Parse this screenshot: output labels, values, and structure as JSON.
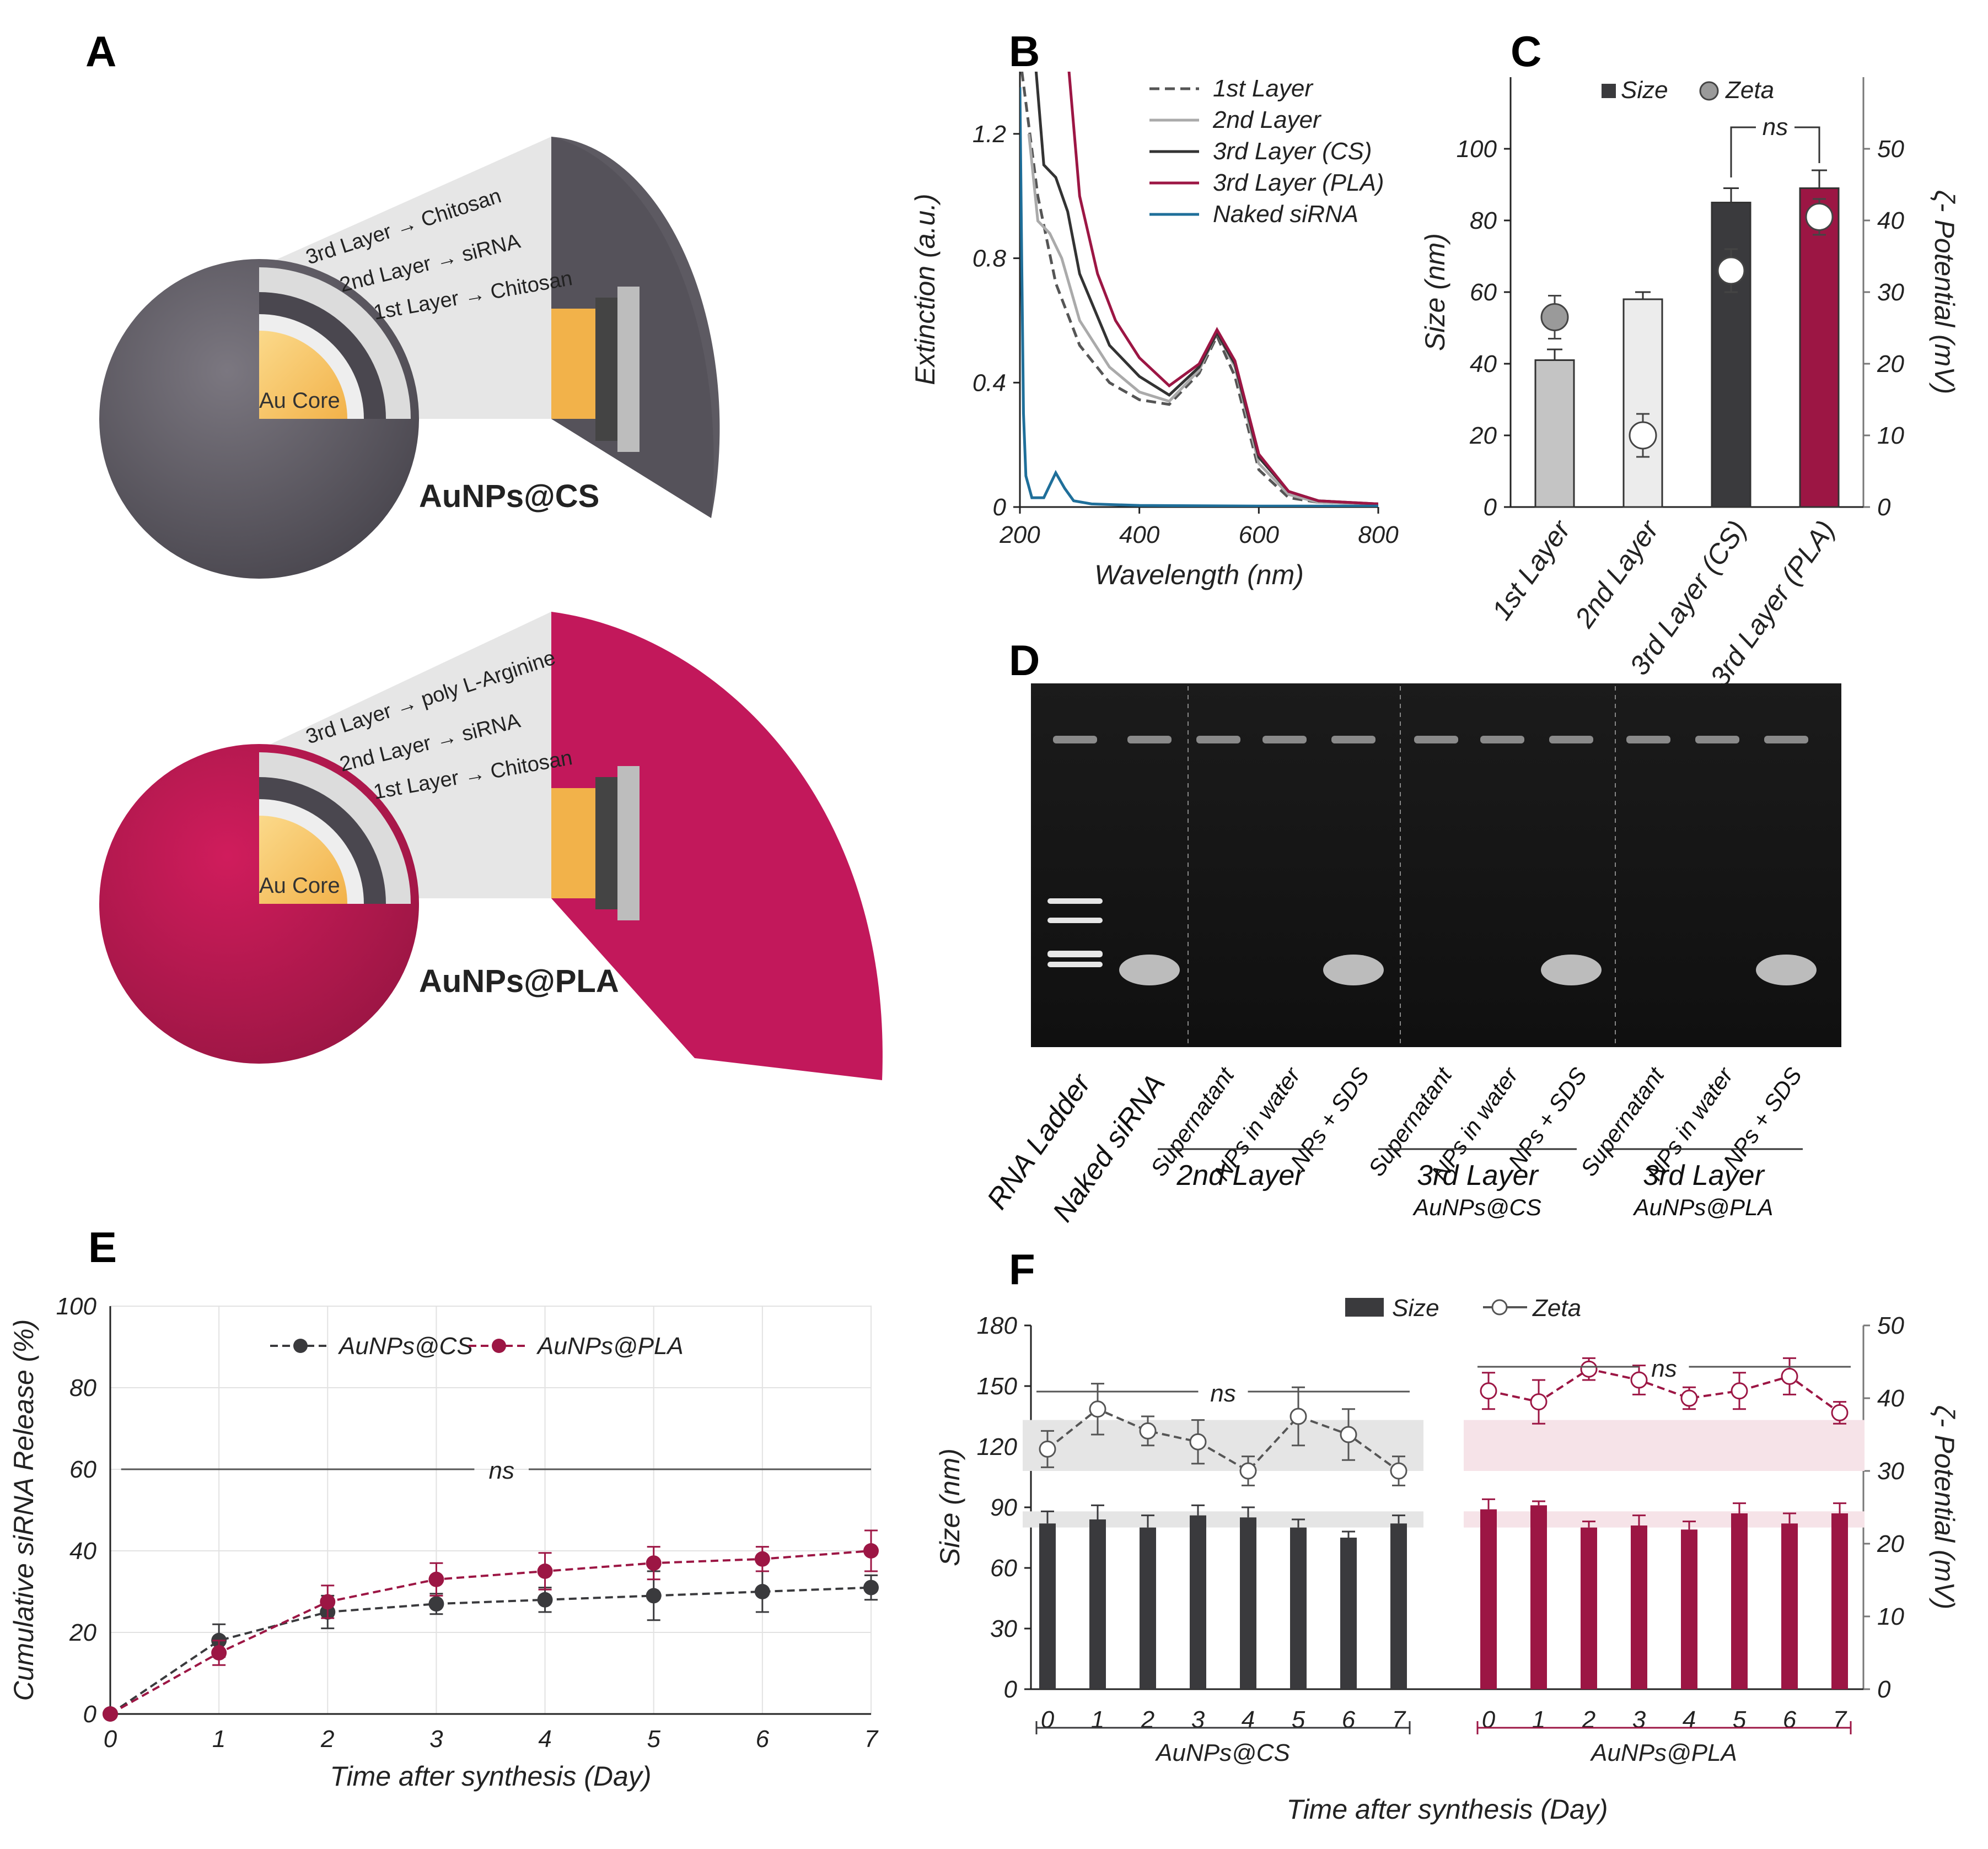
{
  "colors": {
    "cs_dark": "#3a3a3d",
    "pla": "#9c1644",
    "siRNA_line": "#1f6f9a",
    "light_gray": "#c9c9c9",
    "lighter_gray": "#ececec",
    "au_core": "#f7c86a",
    "sphere_cs": "#5d5a62",
    "sphere_pla": "#b8164f"
  },
  "panelA": {
    "label": "A",
    "cs": {
      "layers": [
        "3rd Layer → Chitosan",
        "2nd Layer → siRNA",
        "1st Layer → Chitosan"
      ],
      "core": "Au Core",
      "name": "AuNPs@CS"
    },
    "pla": {
      "layers": [
        "3rd Layer → poly L-Arginine",
        "2nd Layer → siRNA",
        "1st Layer → Chitosan"
      ],
      "core": "Au Core",
      "name": "AuNPs@PLA"
    }
  },
  "panelD": {
    "label": "D",
    "lanes": [
      "RNA Ladder",
      "Naked siRNA",
      "Supernatant",
      "NPs in water",
      "NPs + SDS",
      "Supernatant",
      "NPs in water",
      "NPs + SDS",
      "Supernatant",
      "NPs in water",
      "NPs + SDS"
    ],
    "groups": [
      {
        "name": "2nd Layer",
        "sub": ""
      },
      {
        "name": "3rd Layer",
        "sub": "AuNPs@CS"
      },
      {
        "name": "3rd Layer",
        "sub": "AuNPs@PLA"
      }
    ],
    "bands": {
      "ladder_lanes": [
        0
      ],
      "sirna_band_lanes": [
        1,
        4,
        7,
        10
      ]
    }
  },
  "chart_data": [
    {
      "panel": "B",
      "type": "line",
      "xlabel": "Wavelength (nm)",
      "ylabel": "Extinction (a.u.)",
      "xlim": [
        200,
        800
      ],
      "ylim": [
        0,
        1.4
      ],
      "xticks": [
        200,
        400,
        600,
        800
      ],
      "yticks": [
        0,
        0.4,
        0.8,
        1.2
      ],
      "series": [
        {
          "name": "1st Layer",
          "style": "dashed",
          "color": "#555555",
          "x": [
            200,
            230,
            260,
            300,
            350,
            400,
            450,
            500,
            530,
            560,
            600,
            650,
            700,
            800
          ],
          "y": [
            1.45,
            1.0,
            0.72,
            0.52,
            0.4,
            0.345,
            0.33,
            0.43,
            0.55,
            0.42,
            0.12,
            0.03,
            0.015,
            0.01
          ]
        },
        {
          "name": "2nd Layer",
          "style": "solid",
          "color": "#aaaaaa",
          "x": [
            215,
            230,
            250,
            270,
            300,
            350,
            400,
            450,
            500,
            530,
            560,
            600,
            650,
            700,
            800
          ],
          "y": [
            1.2,
            0.92,
            0.88,
            0.8,
            0.6,
            0.45,
            0.37,
            0.34,
            0.44,
            0.56,
            0.45,
            0.14,
            0.04,
            0.015,
            0.01
          ]
        },
        {
          "name": "3rd Layer (CS)",
          "style": "solid",
          "color": "#333333",
          "x": [
            225,
            240,
            260,
            280,
            300,
            350,
            400,
            450,
            500,
            530,
            560,
            600,
            650,
            700,
            800
          ],
          "y": [
            1.45,
            1.1,
            1.06,
            0.95,
            0.75,
            0.52,
            0.42,
            0.36,
            0.45,
            0.56,
            0.46,
            0.16,
            0.05,
            0.02,
            0.01
          ]
        },
        {
          "name": "3rd Layer (PLA)",
          "style": "solid",
          "color": "#9c1644",
          "x": [
            280,
            300,
            330,
            360,
            400,
            450,
            500,
            530,
            560,
            600,
            650,
            700,
            800
          ],
          "y": [
            1.45,
            1.0,
            0.75,
            0.6,
            0.48,
            0.39,
            0.46,
            0.57,
            0.47,
            0.17,
            0.05,
            0.02,
            0.01
          ]
        },
        {
          "name": "Naked siRNA",
          "style": "solid",
          "color": "#1f6f9a",
          "x": [
            200,
            203,
            206,
            210,
            220,
            240,
            260,
            275,
            290,
            320,
            400,
            600,
            800
          ],
          "y": [
            1.35,
            0.8,
            0.3,
            0.1,
            0.03,
            0.03,
            0.11,
            0.06,
            0.02,
            0.01,
            0.005,
            0.003,
            0.003
          ]
        }
      ]
    },
    {
      "panel": "C",
      "type": "bar",
      "categories": [
        "1st Layer",
        "2nd Layer",
        "3rd Layer (CS)",
        "3rd Layer (PLA)"
      ],
      "ylabel": "Size (nm)",
      "y2label": "ζ- Potential (mV)",
      "ylim": [
        0,
        120
      ],
      "yticks": [
        0,
        20,
        40,
        60,
        80,
        100
      ],
      "y2lim": [
        0,
        60
      ],
      "y2ticks": [
        0,
        10,
        20,
        30,
        40,
        50
      ],
      "legend": [
        "Size",
        "Zeta"
      ],
      "annotation": "ns",
      "series": [
        {
          "name": "Size",
          "values": [
            41,
            58,
            85,
            89
          ],
          "errors": [
            3,
            2,
            4,
            5
          ],
          "colors": [
            "#c4c4c4",
            "#ececec",
            "#3a3a3d",
            "#9c1644"
          ]
        },
        {
          "name": "Zeta",
          "values": [
            26.5,
            10,
            33,
            40.5
          ],
          "errors": [
            3,
            3,
            3,
            2.5
          ]
        }
      ]
    },
    {
      "panel": "E",
      "type": "line",
      "xlabel": "Time after synthesis (Day)",
      "ylabel": "Cumulative siRNA Release (%)",
      "xlim": [
        0,
        7
      ],
      "ylim": [
        0,
        100
      ],
      "xticks": [
        0,
        1,
        2,
        3,
        4,
        5,
        6,
        7
      ],
      "yticks": [
        0,
        20,
        40,
        60,
        80,
        100
      ],
      "annotation": "ns",
      "annotation_y": 60,
      "grid": true,
      "legend_position": "top-center",
      "series": [
        {
          "name": "AuNPs@CS",
          "color": "#3a3a3d",
          "x": [
            0,
            1,
            2,
            3,
            4,
            5,
            6,
            7
          ],
          "y": [
            0,
            18,
            25,
            27,
            28,
            29,
            30,
            31
          ],
          "errors": [
            0,
            4,
            4,
            2.5,
            3,
            6,
            5,
            3
          ]
        },
        {
          "name": "AuNPs@PLA",
          "color": "#9c1644",
          "x": [
            0,
            1,
            2,
            3,
            4,
            5,
            6,
            7
          ],
          "y": [
            0,
            15,
            27.5,
            33,
            35,
            37,
            38,
            40
          ],
          "errors": [
            0,
            3,
            4,
            4,
            4.5,
            4,
            3,
            5
          ]
        }
      ]
    },
    {
      "panel": "F",
      "type": "bar",
      "xlabel": "Time after synthesis (Day)",
      "ylabel": "Size (nm)",
      "y2label": "ζ- Potential (mV)",
      "ylim": [
        0,
        180
      ],
      "yticks": [
        0,
        30,
        60,
        90,
        120,
        150,
        180
      ],
      "y2lim": [
        0,
        50
      ],
      "y2ticks": [
        0,
        10,
        20,
        30,
        40,
        50
      ],
      "legend": [
        "Size",
        "Zeta"
      ],
      "groups": [
        {
          "name": "AuNPs@CS",
          "color": "#3a3a3d",
          "x": [
            0,
            1,
            2,
            3,
            4,
            5,
            6,
            7
          ],
          "size": [
            82,
            84,
            80,
            86,
            85,
            80,
            75,
            82
          ],
          "size_err": [
            6,
            7,
            6,
            5,
            5,
            4,
            3,
            4
          ],
          "zeta": [
            33,
            38.5,
            35.5,
            34,
            30,
            37.5,
            35,
            30
          ],
          "zeta_err": [
            2.5,
            3.5,
            2,
            3,
            2,
            4,
            3.5,
            2
          ],
          "annotation": "ns"
        },
        {
          "name": "AuNPs@PLA",
          "color": "#9c1644",
          "x": [
            0,
            1,
            2,
            3,
            4,
            5,
            6,
            7
          ],
          "size": [
            89,
            91,
            80,
            81,
            79,
            87,
            82,
            87
          ],
          "size_err": [
            5,
            2,
            3,
            5,
            4,
            5,
            5,
            5
          ],
          "zeta": [
            41,
            39.5,
            44,
            42.5,
            40,
            41,
            43,
            38
          ],
          "zeta_err": [
            2.5,
            3,
            1.5,
            2,
            1.5,
            2.5,
            2.5,
            1.5
          ],
          "annotation": "ns"
        }
      ]
    }
  ]
}
